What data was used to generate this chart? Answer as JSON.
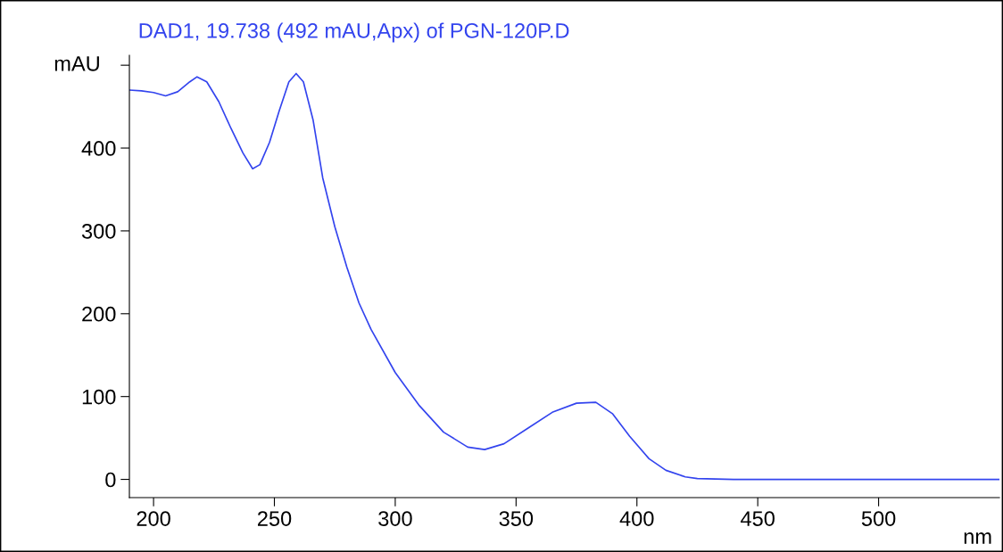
{
  "chart_data": {
    "type": "line",
    "title": "DAD1, 19.738 (492 mAU,Apx) of PGN-120P.D",
    "xlabel": "nm",
    "ylabel": "mAU",
    "x": [
      190,
      195,
      200,
      205,
      210,
      215,
      218,
      222,
      227,
      232,
      237,
      241,
      244,
      248,
      252,
      256,
      259,
      262,
      266,
      270,
      275,
      280,
      285,
      290,
      300,
      310,
      320,
      330,
      337,
      345,
      355,
      365,
      375,
      383,
      390,
      397,
      405,
      412,
      420,
      425,
      440,
      550
    ],
    "series": [
      {
        "color": "#3344ee",
        "values": [
          470,
          469,
          467,
          463,
          468,
          480,
          486,
          480,
          456,
          424,
          394,
          375,
          380,
          407,
          445,
          480,
          490,
          480,
          434,
          364,
          305,
          256,
          213,
          181,
          129,
          89,
          57,
          39,
          36,
          43,
          62,
          81,
          92,
          93,
          79,
          52,
          25,
          11,
          3,
          1,
          0,
          0
        ]
      }
    ],
    "xlim": [
      190,
      550
    ],
    "ylim": [
      -22,
      512
    ],
    "xticks": [
      200,
      250,
      300,
      350,
      400,
      450,
      500
    ],
    "yticks": [
      0,
      100,
      200,
      300,
      400,
      {
        "value": 500,
        "label": null
      }
    ],
    "grid": false,
    "legend": false,
    "marker": "none",
    "line_style": "solid"
  }
}
